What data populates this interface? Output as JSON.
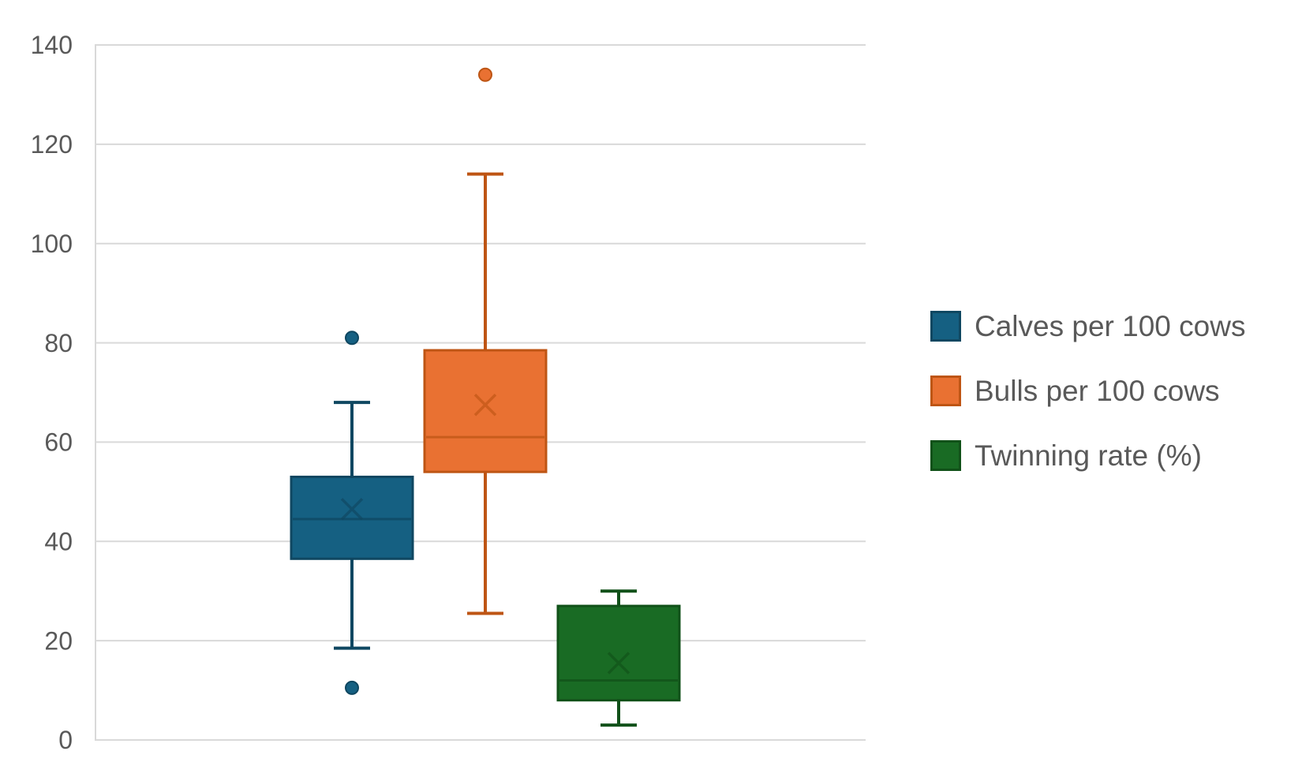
{
  "chart_data": {
    "type": "boxplot",
    "orientation": "vertical",
    "ylim": [
      0,
      140
    ],
    "yticks": [
      0,
      20,
      40,
      60,
      80,
      100,
      120,
      140
    ],
    "grid": "horizontal",
    "gridline_color": "#D9D9D9",
    "axis_label_color": "#595959",
    "background_color": "#FFFFFF",
    "legend_position": "right",
    "series": [
      {
        "name": "Calves per 100 cows",
        "color": "#156082",
        "border_color": "#0F4761",
        "whisker_low": 18.5,
        "q1": 36.5,
        "median": 44.5,
        "mean": 46.5,
        "q3": 53,
        "whisker_high": 68,
        "outliers": [
          81,
          10.5
        ]
      },
      {
        "name": "Bulls per 100 cows",
        "color": "#E97132",
        "border_color": "#BE5514",
        "whisker_low": 25.5,
        "q1": 54,
        "median": 61,
        "mean": 67.5,
        "q3": 78.5,
        "whisker_high": 114,
        "outliers": [
          134
        ]
      },
      {
        "name": "Twinning rate (%)",
        "color": "#196B24",
        "border_color": "#115119",
        "whisker_low": 3,
        "q1": 8,
        "median": 12,
        "mean": 15.5,
        "q3": 27,
        "whisker_high": 30,
        "outliers": []
      }
    ]
  }
}
